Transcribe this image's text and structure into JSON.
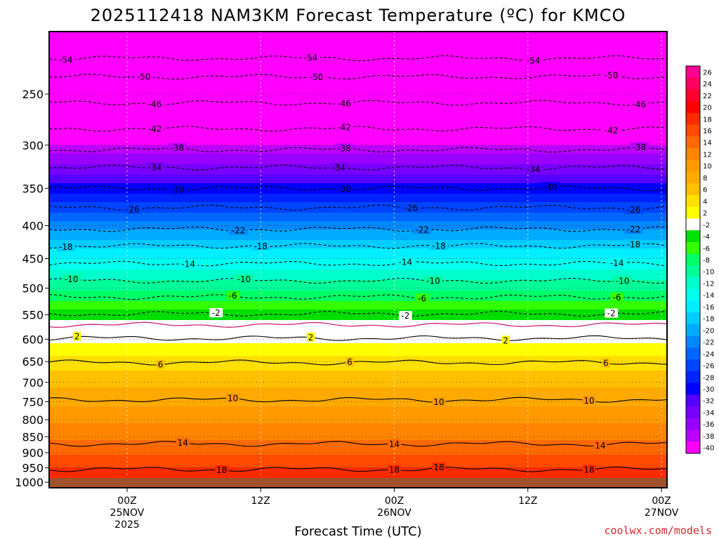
{
  "chart_data": {
    "type": "heatmap",
    "title": "2025112418 NAM3KM Forecast Temperature (ºC) for KMCO",
    "xlabel": "Forecast Time (UTC)",
    "ylabel": "",
    "credit": "coolwx.com/models",
    "y_axis": {
      "scale": "log-pressure",
      "range": [
        1020,
        200
      ],
      "ticks": [
        250,
        300,
        350,
        400,
        450,
        500,
        550,
        600,
        650,
        700,
        750,
        800,
        850,
        900,
        950,
        1000
      ]
    },
    "x_axis": {
      "unit": "hours since 2025-11-24 18Z",
      "range": [
        -1,
        54.5
      ],
      "ticks": [
        {
          "hour": 6,
          "lines": [
            "00Z",
            "25NOV",
            "2025"
          ]
        },
        {
          "hour": 18,
          "lines": [
            "12Z"
          ]
        },
        {
          "hour": 30,
          "lines": [
            "00Z",
            "26NOV"
          ]
        },
        {
          "hour": 42,
          "lines": [
            "12Z"
          ]
        },
        {
          "hour": 54,
          "lines": [
            "00Z",
            "27NOV"
          ]
        }
      ]
    },
    "grid": true,
    "colorbar": {
      "levels": [
        26,
        24,
        22,
        20,
        18,
        16,
        14,
        12,
        10,
        8,
        6,
        4,
        2,
        -2,
        -4,
        -6,
        -8,
        -10,
        -12,
        -14,
        -16,
        -18,
        -20,
        -22,
        -24,
        -26,
        -28,
        -30,
        -32,
        -34,
        -36,
        -38,
        -40
      ],
      "colors": [
        "#ff0090",
        "#ff0060",
        "#ff0030",
        "#ff0000",
        "#ff2a00",
        "#ff4a00",
        "#ff6a00",
        "#ff8400",
        "#ff9a00",
        "#ffaa00",
        "#ffc000",
        "#ffe000",
        "#ffff00",
        "#ffffff",
        "#00e000",
        "#33ff00",
        "#00ff66",
        "#00ff99",
        "#00ffcc",
        "#00ffee",
        "#00eeff",
        "#00ccff",
        "#00aaff",
        "#0088ff",
        "#0066ff",
        "#0044ff",
        "#0022ff",
        "#0000ff",
        "#5500ff",
        "#7700ff",
        "#9900ff",
        "#bb00ff",
        "#ff00ff"
      ]
    },
    "profile": [
      {
        "p": 1000,
        "t": 20
      },
      {
        "p": 950,
        "t": 18
      },
      {
        "p": 900,
        "t": 15.5
      },
      {
        "p": 850,
        "t": 13.5
      },
      {
        "p": 800,
        "t": 11.5
      },
      {
        "p": 750,
        "t": 9.5
      },
      {
        "p": 700,
        "t": 7.5
      },
      {
        "p": 650,
        "t": 5
      },
      {
        "p": 600,
        "t": 1.5
      },
      {
        "p": 550,
        "t": -3
      },
      {
        "p": 500,
        "t": -8.5
      },
      {
        "p": 450,
        "t": -14
      },
      {
        "p": 400,
        "t": -21
      },
      {
        "p": 350,
        "t": -29
      },
      {
        "p": 300,
        "t": -38
      },
      {
        "p": 250,
        "t": -48.5
      },
      {
        "p": 220,
        "t": -54
      },
      {
        "p": 200,
        "t": -58
      }
    ],
    "contours": [
      {
        "value": -54,
        "style": "dashed",
        "p": 220,
        "labels": [
          {
            "h": 0.5,
            "text": "-54"
          },
          {
            "h": 22.5,
            "text": "-54"
          },
          {
            "h": 42.5,
            "text": "-54"
          }
        ]
      },
      {
        "value": -50,
        "style": "dashed",
        "p": 235,
        "labels": [
          {
            "h": 7.5,
            "text": "-50"
          },
          {
            "h": 23,
            "text": "-50"
          },
          {
            "h": 49.5,
            "text": "-50"
          }
        ]
      },
      {
        "value": -46,
        "style": "dashed",
        "p": 258,
        "labels": [
          {
            "h": 8.5,
            "text": "-46"
          },
          {
            "h": 25.5,
            "text": "-46"
          },
          {
            "h": 52,
            "text": "-46"
          }
        ]
      },
      {
        "value": -42,
        "style": "dashed",
        "p": 283,
        "labels": [
          {
            "h": 8.5,
            "text": "-42"
          },
          {
            "h": 25.5,
            "text": "-42"
          },
          {
            "h": 49.5,
            "text": "-42"
          }
        ]
      },
      {
        "value": -38,
        "style": "dashed",
        "p": 305,
        "labels": [
          {
            "h": 10.5,
            "text": "-38"
          },
          {
            "h": 25.5,
            "text": "-38"
          },
          {
            "h": 52,
            "text": "-38"
          }
        ]
      },
      {
        "value": -34,
        "style": "dashed",
        "p": 325,
        "labels": [
          {
            "h": 8.5,
            "text": "-34"
          },
          {
            "h": 25,
            "text": "-34"
          },
          {
            "h": 42.5,
            "text": "-34"
          }
        ]
      },
      {
        "value": -30,
        "style": "dashed",
        "p": 350,
        "labels": [
          {
            "h": 10.5,
            "text": "-30"
          },
          {
            "h": 25.5,
            "text": "-30"
          },
          {
            "h": 44,
            "text": "-30"
          }
        ]
      },
      {
        "value": -26,
        "style": "dashed",
        "p": 375,
        "labels": [
          {
            "h": 6.5,
            "text": "-26"
          },
          {
            "h": 31.5,
            "text": "-26"
          },
          {
            "h": 51.5,
            "text": "-26"
          }
        ]
      },
      {
        "value": -22,
        "style": "dashed",
        "p": 405,
        "labels": [
          {
            "h": 16,
            "text": "-22"
          },
          {
            "h": 32.5,
            "text": "-22"
          },
          {
            "h": 51.5,
            "text": "-22"
          }
        ]
      },
      {
        "value": -18,
        "style": "dashed",
        "p": 430,
        "labels": [
          {
            "h": 0.5,
            "text": "-18"
          },
          {
            "h": 18,
            "text": "-18"
          },
          {
            "h": 34,
            "text": "-18"
          },
          {
            "h": 51.5,
            "text": "-18"
          }
        ]
      },
      {
        "value": -14,
        "style": "dashed",
        "p": 458,
        "labels": [
          {
            "h": 11.5,
            "text": "-14"
          },
          {
            "h": 31,
            "text": "-14"
          },
          {
            "h": 50,
            "text": "-14"
          }
        ]
      },
      {
        "value": -10,
        "style": "dashed",
        "p": 487,
        "labels": [
          {
            "h": 1,
            "text": "-10"
          },
          {
            "h": 16.5,
            "text": "-10"
          },
          {
            "h": 33.5,
            "text": "-10"
          },
          {
            "h": 50.5,
            "text": "-10"
          }
        ]
      },
      {
        "value": -6,
        "style": "dashed",
        "p": 516,
        "labels": [
          {
            "h": 15.5,
            "text": "-6"
          },
          {
            "h": 32.5,
            "text": "-6"
          },
          {
            "h": 50,
            "text": "-6"
          }
        ]
      },
      {
        "value": -2,
        "style": "dashed",
        "p": 548,
        "labels": [
          {
            "h": 14,
            "text": "-2"
          },
          {
            "h": 31,
            "text": "-2"
          },
          {
            "h": 49.5,
            "text": "-2"
          }
        ]
      },
      {
        "value": 0,
        "style": "magenta",
        "p": 570,
        "labels": []
      },
      {
        "value": 2,
        "style": "solid",
        "p": 598,
        "labels": [
          {
            "h": 1.5,
            "text": "2"
          },
          {
            "h": 22.5,
            "text": "2"
          },
          {
            "h": 40,
            "text": "2"
          }
        ]
      },
      {
        "value": 6,
        "style": "solid",
        "p": 652,
        "labels": [
          {
            "h": 9,
            "text": "6"
          },
          {
            "h": 26,
            "text": "6"
          },
          {
            "h": 49,
            "text": "6"
          }
        ]
      },
      {
        "value": 10,
        "style": "solid",
        "p": 745,
        "labels": [
          {
            "h": 15.5,
            "text": "10"
          },
          {
            "h": 34,
            "text": "10"
          },
          {
            "h": 47.5,
            "text": "10"
          }
        ]
      },
      {
        "value": 14,
        "style": "solid",
        "p": 872,
        "labels": [
          {
            "h": 11,
            "text": "14"
          },
          {
            "h": 30,
            "text": "14"
          },
          {
            "h": 48.5,
            "text": "14"
          }
        ]
      },
      {
        "value": 18,
        "style": "solid",
        "p": 955,
        "labels": [
          {
            "h": 14.5,
            "text": "18"
          },
          {
            "h": 30,
            "text": "18"
          },
          {
            "h": 34,
            "text": "18"
          },
          {
            "h": 47.5,
            "text": "18"
          }
        ]
      }
    ]
  }
}
